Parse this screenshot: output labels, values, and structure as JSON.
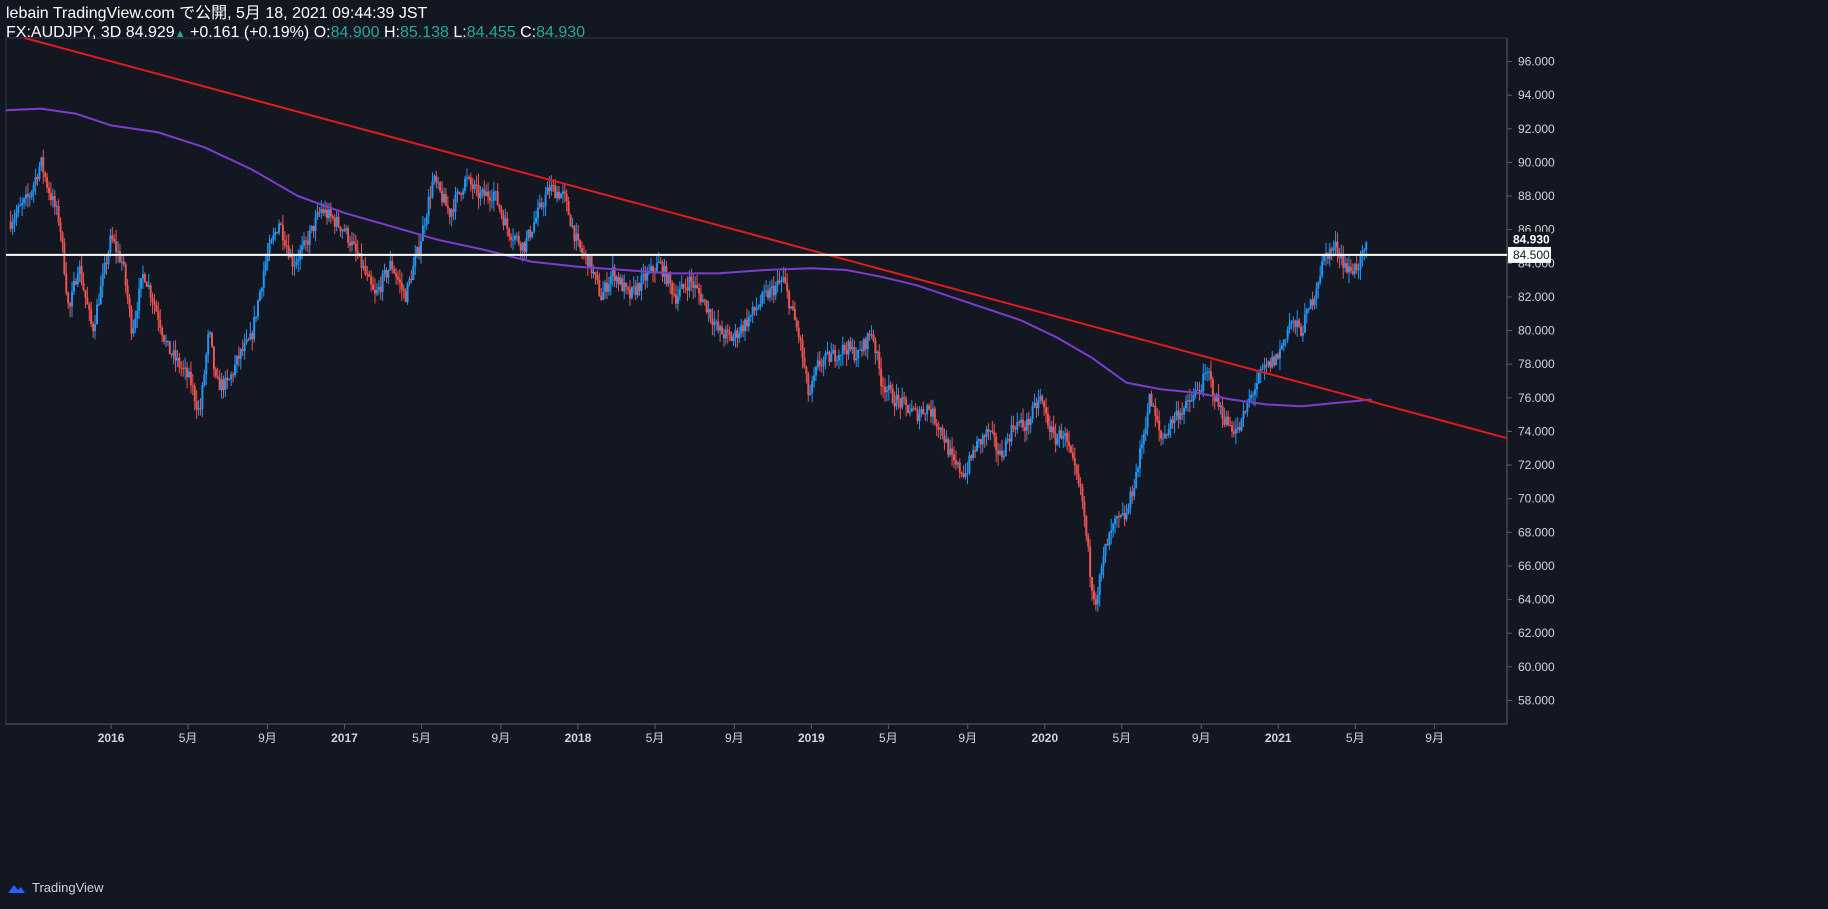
{
  "header": {
    "publisher": "lebain TradingView.com で公開, 5月 18, 2021 09:44:39 JST",
    "symbol": "FX:AUDJPY, 3D",
    "last": "84.929",
    "change": "+0.161 (+0.19%)",
    "o_label": "O:",
    "o_value": "84.900",
    "h_label": "H:",
    "h_value": "85.138",
    "l_label": "L:",
    "l_value": "84.455",
    "c_label": "C:",
    "c_value": "84.930"
  },
  "footer": {
    "brand": "TradingView"
  },
  "colors": {
    "background": "#131722",
    "up": "#2196f3",
    "down": "#ef5350",
    "trendline": "#e01b1b",
    "ma": "#7e3ccf",
    "level": "#ffffff"
  },
  "chart_data": {
    "type": "candlestick",
    "symbol": "FX:AUDJPY",
    "timeframe": "3D",
    "ylim": [
      56.6,
      97.4
    ],
    "y_ticks": [
      58,
      60,
      62,
      64,
      66,
      68,
      70,
      72,
      74,
      76,
      78,
      80,
      82,
      84,
      86,
      88,
      90,
      92,
      94,
      96
    ],
    "y_tick_labels": [
      "58.000",
      "60.000",
      "62.000",
      "64.000",
      "66.000",
      "68.000",
      "70.000",
      "72.000",
      "74.000",
      "76.000",
      "78.000",
      "80.000",
      "82.000",
      "84.000",
      "86.000",
      "88.000",
      "90.000",
      "92.000",
      "94.000",
      "96.000"
    ],
    "x_range": [
      2015.55,
      2021.98
    ],
    "x_ticks": [
      {
        "t": 2016.0,
        "label": "2016"
      },
      {
        "t": 2016.33,
        "label": "5月"
      },
      {
        "t": 2016.67,
        "label": "9月"
      },
      {
        "t": 2017.0,
        "label": "2017"
      },
      {
        "t": 2017.33,
        "label": "5月"
      },
      {
        "t": 2017.67,
        "label": "9月"
      },
      {
        "t": 2018.0,
        "label": "2018"
      },
      {
        "t": 2018.33,
        "label": "5月"
      },
      {
        "t": 2018.67,
        "label": "9月"
      },
      {
        "t": 2019.0,
        "label": "2019"
      },
      {
        "t": 2019.33,
        "label": "5月"
      },
      {
        "t": 2019.67,
        "label": "9月"
      },
      {
        "t": 2020.0,
        "label": "2020"
      },
      {
        "t": 2020.33,
        "label": "5月"
      },
      {
        "t": 2020.67,
        "label": "9月"
      },
      {
        "t": 2021.0,
        "label": "2021"
      },
      {
        "t": 2021.33,
        "label": "5月"
      },
      {
        "t": 2021.67,
        "label": "9月"
      }
    ],
    "price_path": [
      [
        2015.57,
        86.5
      ],
      [
        2015.65,
        88.0
      ],
      [
        2015.7,
        90.0
      ],
      [
        2015.73,
        88.5
      ],
      [
        2015.78,
        86.5
      ],
      [
        2015.82,
        81.0
      ],
      [
        2015.86,
        84.0
      ],
      [
        2015.92,
        80.0
      ],
      [
        2016.0,
        85.5
      ],
      [
        2016.05,
        84.0
      ],
      [
        2016.09,
        80.0
      ],
      [
        2016.14,
        83.5
      ],
      [
        2016.2,
        81.0
      ],
      [
        2016.24,
        79.0
      ],
      [
        2016.29,
        78.0
      ],
      [
        2016.34,
        77.0
      ],
      [
        2016.38,
        75.0
      ],
      [
        2016.42,
        80.0
      ],
      [
        2016.45,
        76.8
      ],
      [
        2016.5,
        76.8
      ],
      [
        2016.55,
        78.5
      ],
      [
        2016.6,
        79.5
      ],
      [
        2016.66,
        84.0
      ],
      [
        2016.72,
        86.5
      ],
      [
        2016.78,
        84.0
      ],
      [
        2016.83,
        85.0
      ],
      [
        2016.9,
        87.2
      ],
      [
        2016.96,
        86.5
      ],
      [
        2017.0,
        86.0
      ],
      [
        2017.07,
        84.0
      ],
      [
        2017.13,
        82.0
      ],
      [
        2017.2,
        84.0
      ],
      [
        2017.26,
        82.0
      ],
      [
        2017.32,
        85.0
      ],
      [
        2017.38,
        89.0
      ],
      [
        2017.45,
        87.0
      ],
      [
        2017.52,
        89.0
      ],
      [
        2017.58,
        88.0
      ],
      [
        2017.64,
        88.2
      ],
      [
        2017.7,
        86.0
      ],
      [
        2017.77,
        85.0
      ],
      [
        2017.83,
        87.0
      ],
      [
        2017.88,
        88.5
      ],
      [
        2017.94,
        88.0
      ],
      [
        2018.0,
        85.0
      ],
      [
        2018.05,
        84.0
      ],
      [
        2018.1,
        82.0
      ],
      [
        2018.15,
        83.5
      ],
      [
        2018.22,
        82.0
      ],
      [
        2018.28,
        83.0
      ],
      [
        2018.35,
        84.0
      ],
      [
        2018.42,
        82.0
      ],
      [
        2018.48,
        83.0
      ],
      [
        2018.55,
        81.5
      ],
      [
        2018.6,
        80.0
      ],
      [
        2018.66,
        79.5
      ],
      [
        2018.72,
        80.5
      ],
      [
        2018.8,
        82.0
      ],
      [
        2018.88,
        83.0
      ],
      [
        2018.95,
        79.5
      ],
      [
        2018.99,
        76.0
      ],
      [
        2019.03,
        78.0
      ],
      [
        2019.09,
        78.5
      ],
      [
        2019.15,
        79.0
      ],
      [
        2019.2,
        78.5
      ],
      [
        2019.26,
        80.0
      ],
      [
        2019.3,
        77.0
      ],
      [
        2019.35,
        76.0
      ],
      [
        2019.4,
        75.5
      ],
      [
        2019.45,
        75.0
      ],
      [
        2019.5,
        75.5
      ],
      [
        2019.56,
        74.0
      ],
      [
        2019.61,
        72.0
      ],
      [
        2019.66,
        71.5
      ],
      [
        2019.7,
        73.0
      ],
      [
        2019.76,
        74.0
      ],
      [
        2019.81,
        72.5
      ],
      [
        2019.87,
        74.5
      ],
      [
        2019.92,
        74.3
      ],
      [
        2019.98,
        76.0
      ],
      [
        2020.04,
        73.5
      ],
      [
        2020.08,
        74.0
      ],
      [
        2020.12,
        72.0
      ],
      [
        2020.16,
        70.0
      ],
      [
        2020.2,
        65.0
      ],
      [
        2020.22,
        64.0
      ],
      [
        2020.26,
        67.0
      ],
      [
        2020.3,
        68.5
      ],
      [
        2020.35,
        69.0
      ],
      [
        2020.4,
        72.0
      ],
      [
        2020.45,
        76.0
      ],
      [
        2020.5,
        73.5
      ],
      [
        2020.56,
        75.0
      ],
      [
        2020.61,
        75.5
      ],
      [
        2020.66,
        76.5
      ],
      [
        2020.7,
        77.5
      ],
      [
        2020.73,
        76.0
      ],
      [
        2020.78,
        74.5
      ],
      [
        2020.83,
        74.0
      ],
      [
        2020.88,
        76.0
      ],
      [
        2020.93,
        77.5
      ],
      [
        2021.0,
        78.5
      ],
      [
        2021.05,
        80.5
      ],
      [
        2021.1,
        80.0
      ],
      [
        2021.15,
        82.0
      ],
      [
        2021.2,
        84.5
      ],
      [
        2021.25,
        85.0
      ],
      [
        2021.3,
        83.5
      ],
      [
        2021.35,
        84.0
      ],
      [
        2021.38,
        84.93
      ]
    ],
    "moving_average": {
      "name": "MA",
      "points": [
        [
          2015.55,
          93.1
        ],
        [
          2015.7,
          93.2
        ],
        [
          2015.85,
          92.9
        ],
        [
          2016.0,
          92.2
        ],
        [
          2016.2,
          91.8
        ],
        [
          2016.4,
          90.9
        ],
        [
          2016.6,
          89.6
        ],
        [
          2016.8,
          88.0
        ],
        [
          2017.0,
          87.0
        ],
        [
          2017.2,
          86.2
        ],
        [
          2017.4,
          85.4
        ],
        [
          2017.6,
          84.8
        ],
        [
          2017.8,
          84.1
        ],
        [
          2018.0,
          83.8
        ],
        [
          2018.2,
          83.6
        ],
        [
          2018.4,
          83.4
        ],
        [
          2018.6,
          83.4
        ],
        [
          2018.8,
          83.6
        ],
        [
          2019.0,
          83.7
        ],
        [
          2019.15,
          83.6
        ],
        [
          2019.3,
          83.2
        ],
        [
          2019.45,
          82.7
        ],
        [
          2019.6,
          82.0
        ],
        [
          2019.75,
          81.3
        ],
        [
          2019.9,
          80.6
        ],
        [
          2020.05,
          79.6
        ],
        [
          2020.2,
          78.4
        ],
        [
          2020.35,
          76.9
        ],
        [
          2020.5,
          76.5
        ],
        [
          2020.65,
          76.3
        ],
        [
          2020.8,
          75.9
        ],
        [
          2020.95,
          75.6
        ],
        [
          2021.1,
          75.5
        ],
        [
          2021.25,
          75.7
        ],
        [
          2021.4,
          75.9
        ]
      ]
    },
    "trendline": {
      "from": [
        2015.63,
        97.4
      ],
      "to": [
        2021.98,
        73.6
      ]
    },
    "horizontal_level": {
      "value": 84.5,
      "label": "84.500"
    },
    "last_price": {
      "value": 84.93,
      "label": "84.930"
    }
  }
}
